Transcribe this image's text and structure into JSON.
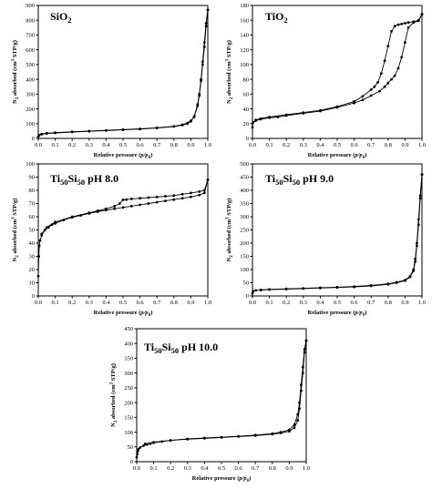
{
  "figure": {
    "shared_xlabel": "Relative pressure (p/p0)",
    "shared_ylabel": "N2 absorbed (cm3 STP/g)"
  },
  "chart_data": [
    {
      "type": "line",
      "id": "sio2",
      "title": "SiO2",
      "xlabel": "Relative pressure (p/p0)",
      "ylabel": "N2 absorbed (cm3 STP/g)",
      "xlim": [
        0,
        1.0
      ],
      "ylim": [
        0,
        900
      ],
      "xticks": [
        "0.0",
        "0.1",
        "0.2",
        "0.3",
        "0.4",
        "0.5",
        "0.6",
        "0.7",
        "0.8",
        "0.9",
        "1.0"
      ],
      "yticks": [
        "0",
        "100",
        "200",
        "300",
        "400",
        "500",
        "600",
        "700",
        "800",
        "900"
      ],
      "series": [
        {
          "x": [
            0.0,
            0.005,
            0.02,
            0.05,
            0.1,
            0.2,
            0.3,
            0.4,
            0.5,
            0.6,
            0.7,
            0.8,
            0.85,
            0.88,
            0.9,
            0.92,
            0.94,
            0.95,
            0.96,
            0.97,
            0.98,
            0.99,
            1.0
          ],
          "y": [
            12,
            22,
            28,
            33,
            37,
            43,
            48,
            53,
            58,
            63,
            70,
            80,
            90,
            100,
            115,
            150,
            230,
            300,
            400,
            520,
            650,
            780,
            870
          ]
        },
        {
          "x": [
            1.0,
            0.99,
            0.98,
            0.97,
            0.96,
            0.95,
            0.94,
            0.92,
            0.9,
            0.88,
            0.85,
            0.8,
            0.7,
            0.6,
            0.5,
            0.4,
            0.3,
            0.2,
            0.1,
            0.05,
            0.02
          ],
          "y": [
            870,
            760,
            620,
            500,
            390,
            290,
            220,
            145,
            120,
            105,
            93,
            82,
            72,
            65,
            60,
            55,
            50,
            45,
            39,
            35,
            30
          ]
        }
      ]
    },
    {
      "type": "line",
      "id": "tio2",
      "title": "TiO2",
      "xlabel": "Relative pressure (p/p0)",
      "ylabel": "N2 absorbed (cm3 STP/g)",
      "xlim": [
        0,
        1.0
      ],
      "ylim": [
        0,
        180
      ],
      "xticks": [
        "0.0",
        "0.1",
        "0.2",
        "0.3",
        "0.4",
        "0.5",
        "0.6",
        "0.7",
        "0.8",
        "0.9",
        "1.0"
      ],
      "yticks": [
        "0",
        "20",
        "40",
        "60",
        "80",
        "100",
        "120",
        "140",
        "160",
        "180"
      ],
      "series": [
        {
          "x": [
            0.0,
            0.005,
            0.02,
            0.05,
            0.1,
            0.15,
            0.2,
            0.3,
            0.4,
            0.5,
            0.6,
            0.65,
            0.7,
            0.75,
            0.78,
            0.8,
            0.82,
            0.84,
            0.86,
            0.88,
            0.9,
            0.92,
            0.95,
            0.98,
            1.0
          ],
          "y": [
            15,
            22,
            24,
            26,
            28,
            29,
            31,
            34,
            37,
            42,
            48,
            52,
            58,
            64,
            70,
            75,
            80,
            85,
            95,
            110,
            130,
            150,
            157,
            159,
            168
          ]
        },
        {
          "x": [
            1.0,
            0.98,
            0.95,
            0.92,
            0.9,
            0.88,
            0.86,
            0.84,
            0.82,
            0.8,
            0.78,
            0.76,
            0.74,
            0.72,
            0.7,
            0.65,
            0.6,
            0.5,
            0.4,
            0.3,
            0.2,
            0.1,
            0.05,
            0.02
          ],
          "y": [
            168,
            160,
            158,
            157,
            156,
            155,
            154,
            152,
            145,
            125,
            105,
            88,
            76,
            70,
            66,
            57,
            50,
            43,
            38,
            35,
            32,
            29,
            27,
            25
          ]
        }
      ]
    },
    {
      "type": "line",
      "id": "ph8",
      "title": "Ti50Si50 pH 8.0",
      "xlabel": "Relative pressure (p/p0)",
      "ylabel": "N2 absorbed (cm3 STP/g)",
      "xlim": [
        0,
        1.0
      ],
      "ylim": [
        0,
        100
      ],
      "xticks": [
        "0.0",
        "0.1",
        "0.2",
        "0.3",
        "0.4",
        "0.5",
        "0.6",
        "0.7",
        "0.8",
        "0.9",
        "1.0"
      ],
      "yticks": [
        "0",
        "10",
        "20",
        "30",
        "40",
        "50",
        "60",
        "70",
        "80",
        "90",
        "100"
      ],
      "series": [
        {
          "x": [
            0.0,
            0.003,
            0.006,
            0.01,
            0.02,
            0.04,
            0.06,
            0.08,
            0.1,
            0.15,
            0.2,
            0.25,
            0.3,
            0.35,
            0.4,
            0.45,
            0.5,
            0.55,
            0.6,
            0.65,
            0.7,
            0.75,
            0.8,
            0.85,
            0.9,
            0.95,
            0.98,
            1.0
          ],
          "y": [
            15,
            30,
            38,
            42,
            46,
            50,
            52,
            54,
            55,
            57.5,
            59.5,
            61,
            62.5,
            63.8,
            65,
            66,
            67,
            68,
            69,
            70,
            71,
            72,
            73,
            74,
            75,
            76.5,
            78,
            88
          ]
        },
        {
          "x": [
            1.0,
            0.98,
            0.95,
            0.9,
            0.85,
            0.8,
            0.75,
            0.7,
            0.65,
            0.6,
            0.55,
            0.52,
            0.5,
            0.48,
            0.45,
            0.4,
            0.35,
            0.3,
            0.2,
            0.1,
            0.05,
            0.02
          ],
          "y": [
            88,
            80,
            79,
            78,
            77,
            76,
            75.5,
            75,
            74.5,
            74,
            73.5,
            73,
            72.8,
            70,
            68,
            66,
            64.5,
            63,
            60,
            56,
            52,
            47
          ]
        }
      ]
    },
    {
      "type": "line",
      "id": "ph9",
      "title": "Ti50Si50 pH 9.0",
      "xlabel": "Relative pressure (p/p0)",
      "ylabel": "N2 absorbed (cm3 STP/g)",
      "xlim": [
        0,
        1.0
      ],
      "ylim": [
        0,
        500
      ],
      "xticks": [
        "0.0",
        "0.1",
        "0.2",
        "0.3",
        "0.4",
        "0.5",
        "0.6",
        "0.7",
        "0.8",
        "0.9",
        "1.0"
      ],
      "yticks": [
        "0",
        "50",
        "100",
        "150",
        "200",
        "250",
        "300",
        "350",
        "400",
        "450",
        "500"
      ],
      "series": [
        {
          "x": [
            0.0,
            0.005,
            0.02,
            0.05,
            0.1,
            0.2,
            0.3,
            0.4,
            0.5,
            0.6,
            0.7,
            0.8,
            0.85,
            0.9,
            0.93,
            0.95,
            0.96,
            0.97,
            0.98,
            0.99,
            1.0
          ],
          "y": [
            10,
            18,
            21,
            23,
            25,
            27,
            29,
            31,
            33,
            36,
            40,
            46,
            52,
            60,
            75,
            100,
            140,
            200,
            290,
            380,
            460
          ]
        },
        {
          "x": [
            1.0,
            0.99,
            0.98,
            0.97,
            0.96,
            0.95,
            0.93,
            0.9,
            0.85,
            0.8,
            0.7,
            0.6,
            0.5,
            0.4,
            0.3,
            0.2,
            0.1,
            0.05
          ],
          "y": [
            460,
            370,
            270,
            190,
            130,
            95,
            72,
            58,
            50,
            44,
            38,
            34,
            32,
            30,
            28,
            26,
            24,
            22
          ]
        }
      ]
    },
    {
      "type": "line",
      "id": "ph10",
      "title": "Ti50Si50 pH 10.0",
      "xlabel": "Relative pressure (p/p0)",
      "ylabel": "N2 absorbed (cm3 STP/g)",
      "xlim": [
        0,
        1.0
      ],
      "ylim": [
        0,
        450
      ],
      "xticks": [
        "0.0",
        "0.1",
        "0.2",
        "0.3",
        "0.4",
        "0.5",
        "0.6",
        "0.7",
        "0.8",
        "0.9",
        "1.0"
      ],
      "yticks": [
        "0",
        "50",
        "100",
        "150",
        "200",
        "250",
        "300",
        "350",
        "400",
        "450"
      ],
      "series": [
        {
          "x": [
            0.0,
            0.003,
            0.006,
            0.01,
            0.02,
            0.04,
            0.06,
            0.08,
            0.1,
            0.15,
            0.2,
            0.3,
            0.4,
            0.5,
            0.6,
            0.7,
            0.8,
            0.85,
            0.9,
            0.93,
            0.95,
            0.96,
            0.97,
            0.98,
            0.99,
            1.0
          ],
          "y": [
            15,
            25,
            35,
            42,
            48,
            54,
            58,
            61,
            64,
            68,
            72,
            77,
            80,
            83,
            86,
            90,
            95,
            100,
            108,
            125,
            160,
            200,
            260,
            320,
            380,
            410
          ]
        },
        {
          "x": [
            1.0,
            0.99,
            0.98,
            0.97,
            0.96,
            0.95,
            0.93,
            0.9,
            0.85,
            0.8,
            0.7,
            0.6,
            0.5,
            0.4,
            0.3,
            0.2,
            0.1,
            0.05
          ],
          "y": [
            410,
            370,
            300,
            240,
            180,
            140,
            115,
            103,
            97,
            93,
            88,
            85,
            82,
            79,
            76,
            72,
            66,
            60
          ]
        }
      ]
    }
  ]
}
